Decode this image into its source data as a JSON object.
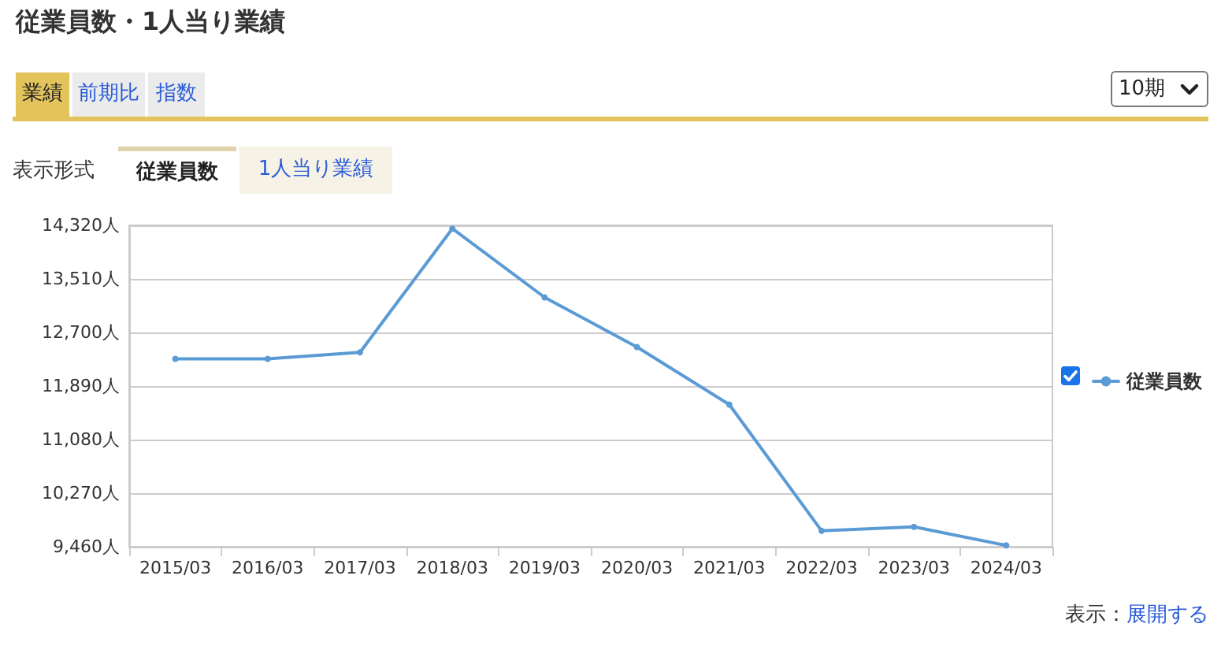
{
  "chart_data": {
    "type": "line",
    "title": "従業員数・1人当り業績",
    "categories": [
      "2015/03",
      "2016/03",
      "2017/03",
      "2018/03",
      "2019/03",
      "2020/03",
      "2021/03",
      "2022/03",
      "2023/03",
      "2024/03"
    ],
    "series": [
      {
        "name": "従業員数",
        "color": "#5b9bd5",
        "values": [
          12300,
          12300,
          12400,
          14270,
          13230,
          12480,
          11610,
          9700,
          9760,
          9480
        ]
      }
    ],
    "ylim": [
      9460,
      14320
    ],
    "yticks": [
      {
        "value": 9460,
        "label": "9,460人"
      },
      {
        "value": 10270,
        "label": "10,270人"
      },
      {
        "value": 11080,
        "label": "11,080人"
      },
      {
        "value": 11890,
        "label": "11,890人"
      },
      {
        "value": 12700,
        "label": "12,700人"
      },
      {
        "value": 13510,
        "label": "13,510人"
      },
      {
        "value": 14320,
        "label": "14,320人"
      }
    ],
    "grid": "y",
    "legend": "right",
    "marker": "circle",
    "line_style": "solid",
    "annotations": [
      "業績",
      "前期比",
      "指数",
      "10期",
      "表示形式",
      "従業員数",
      "1人当り業績",
      "表示：",
      "展開する"
    ]
  }
}
